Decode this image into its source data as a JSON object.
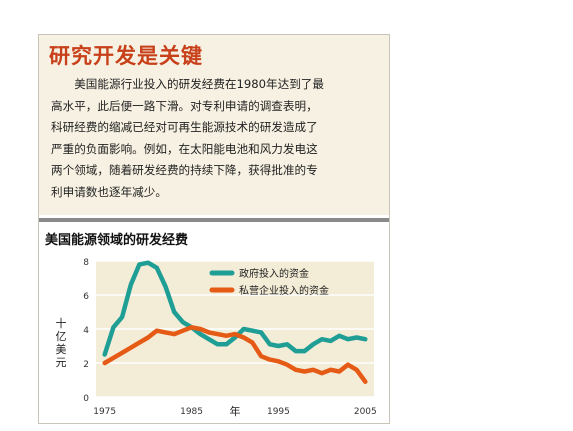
{
  "article": {
    "headline": "研究开发是关键",
    "lines": [
      "　　美国能源行业投入的研发经费在1980年达到了最",
      "高水平，此后便一路下滑。对专利申请的调查表明，",
      "科研经费的缩减已经对可再生能源技术的研发造成了",
      "严重的负面影响。例如，在太阳能电池和风力发电这",
      "两个领域，随着研发经费的持续下降，获得批准的专",
      "利申请数也逐年减少。"
    ]
  },
  "chart_data": {
    "type": "line",
    "title": "美国能源领域的研发经费",
    "xlabel": "年",
    "ylabel": "十亿美元",
    "ylabel_chars": [
      "十",
      "亿",
      "美",
      "元"
    ],
    "xlim": [
      1974,
      2006
    ],
    "ylim": [
      0,
      8
    ],
    "x_ticks": [
      1975,
      1985,
      1995,
      2005
    ],
    "y_ticks": [
      0,
      2,
      4,
      6,
      8
    ],
    "grid": "horizontal",
    "legend_position": "top-right",
    "series": [
      {
        "name": "政府投入的资金",
        "color": "#1f9e96",
        "points": [
          [
            1975,
            2.5
          ],
          [
            1976,
            4.1
          ],
          [
            1977,
            4.7
          ],
          [
            1978,
            6.6
          ],
          [
            1979,
            7.8
          ],
          [
            1980,
            7.9
          ],
          [
            1981,
            7.6
          ],
          [
            1982,
            6.5
          ],
          [
            1983,
            5.0
          ],
          [
            1984,
            4.4
          ],
          [
            1985,
            4.1
          ],
          [
            1986,
            3.7
          ],
          [
            1987,
            3.4
          ],
          [
            1988,
            3.1
          ],
          [
            1989,
            3.1
          ],
          [
            1990,
            3.5
          ],
          [
            1991,
            4.0
          ],
          [
            1992,
            3.9
          ],
          [
            1993,
            3.8
          ],
          [
            1994,
            3.1
          ],
          [
            1995,
            3.0
          ],
          [
            1996,
            3.1
          ],
          [
            1997,
            2.7
          ],
          [
            1998,
            2.7
          ],
          [
            1999,
            3.1
          ],
          [
            2000,
            3.4
          ],
          [
            2001,
            3.3
          ],
          [
            2002,
            3.6
          ],
          [
            2003,
            3.4
          ],
          [
            2004,
            3.5
          ],
          [
            2005,
            3.4
          ]
        ]
      },
      {
        "name": "私营企业投入的资金",
        "color": "#e55b16",
        "points": [
          [
            1975,
            2.0
          ],
          [
            1976,
            2.3
          ],
          [
            1977,
            2.6
          ],
          [
            1978,
            2.9
          ],
          [
            1979,
            3.2
          ],
          [
            1980,
            3.5
          ],
          [
            1981,
            3.9
          ],
          [
            1982,
            3.8
          ],
          [
            1983,
            3.7
          ],
          [
            1984,
            3.9
          ],
          [
            1985,
            4.1
          ],
          [
            1986,
            4.0
          ],
          [
            1987,
            3.8
          ],
          [
            1988,
            3.7
          ],
          [
            1989,
            3.6
          ],
          [
            1990,
            3.7
          ],
          [
            1991,
            3.5
          ],
          [
            1992,
            3.2
          ],
          [
            1993,
            2.4
          ],
          [
            1994,
            2.2
          ],
          [
            1995,
            2.1
          ],
          [
            1996,
            1.9
          ],
          [
            1997,
            1.6
          ],
          [
            1998,
            1.5
          ],
          [
            1999,
            1.6
          ],
          [
            2000,
            1.4
          ],
          [
            2001,
            1.6
          ],
          [
            2002,
            1.5
          ],
          [
            2003,
            1.9
          ],
          [
            2004,
            1.6
          ],
          [
            2005,
            0.9
          ]
        ]
      }
    ]
  }
}
